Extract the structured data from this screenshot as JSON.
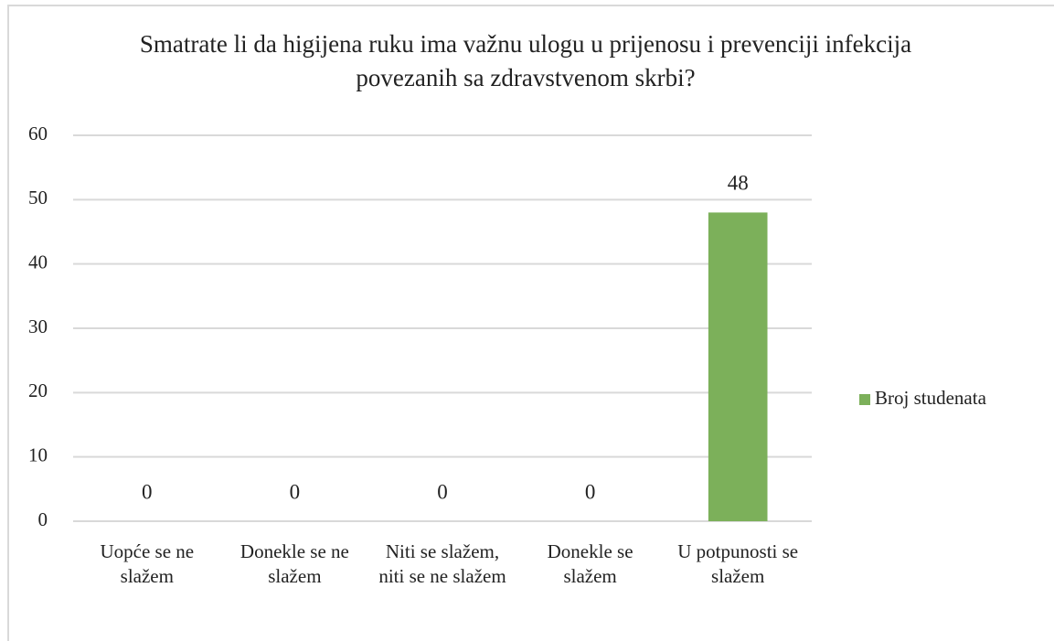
{
  "chart_data": {
    "type": "bar",
    "title": "Smatrate li da higijena ruku ima važnu ulogu u prijenosu i prevenciji infekcija povezanih sa zdravstvenom skrbi?",
    "categories": [
      "Uopće se ne slažem",
      "Donekle se ne slažem",
      "Niti se slažem, niti se ne slažem",
      "Donekle se slažem",
      "U potpunosti se slažem"
    ],
    "series": [
      {
        "name": "Broj studenata",
        "color": "#7cb05a",
        "values": [
          0,
          0,
          0,
          0,
          48
        ]
      }
    ],
    "ylim": [
      0,
      60
    ],
    "yticks": [
      0,
      10,
      20,
      30,
      40,
      50,
      60
    ],
    "grid": true,
    "legend": "right"
  }
}
